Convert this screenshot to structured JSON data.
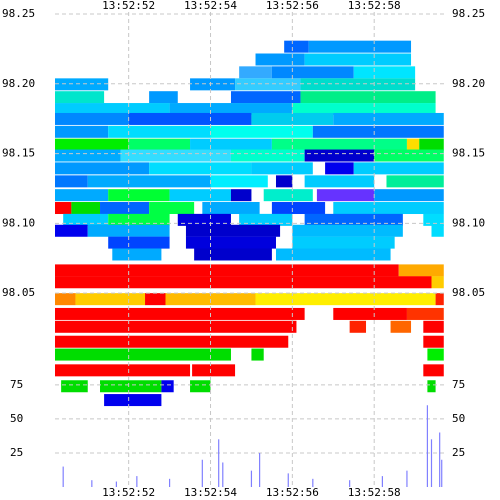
{
  "chart_data": [
    {
      "type": "heatmap",
      "xlim": [
        50.2,
        59.73
      ],
      "xticks": [
        {
          "value": 52,
          "label": "13:52:52"
        },
        {
          "value": 54,
          "label": "13:52:54"
        },
        {
          "value": 56,
          "label": "13:52:56"
        },
        {
          "value": 58,
          "label": "13:52:58"
        }
      ],
      "ylim": [
        97.967,
        98.25
      ],
      "yticks": [
        98.05,
        {
          "value": 98.1,
          "label": "98.10"
        },
        98.15,
        {
          "value": 98.2,
          "label": "98.20"
        },
        98.25
      ],
      "grid": true,
      "rows": [
        {
          "price": 98.2266,
          "cells": [
            [
              55.8,
              56.4,
              "#0066ff"
            ],
            [
              56.4,
              58.9,
              "#0099ff"
            ]
          ]
        },
        {
          "price": 98.2174,
          "cells": [
            [
              55.1,
              56.3,
              "#0099ff"
            ],
            [
              56.3,
              58.9,
              "#00ccff"
            ]
          ]
        },
        {
          "price": 98.2082,
          "cells": [
            [
              54.7,
              55.5,
              "#33aaff"
            ],
            [
              55.5,
              57.5,
              "#0088ff"
            ],
            [
              57.5,
              59.0,
              "#00e5ff"
            ]
          ]
        },
        {
          "price": 98.1996,
          "cells": [
            [
              50.2,
              51.5,
              "#00aaff"
            ],
            [
              53.5,
              54.6,
              "#0099ff"
            ],
            [
              54.6,
              56.2,
              "#33ccff"
            ],
            [
              56.2,
              59.0,
              "#00ddcc"
            ]
          ]
        },
        {
          "price": 98.1904,
          "cells": [
            [
              50.2,
              51.4,
              "#00e5cc"
            ],
            [
              52.5,
              53.2,
              "#0099ff"
            ],
            [
              54.5,
              56.2,
              "#0066ff"
            ],
            [
              56.2,
              59.5,
              "#00ee88"
            ]
          ]
        },
        {
          "price": 98.1819,
          "cells": [
            [
              50.2,
              53.0,
              "#00ccff"
            ],
            [
              53.0,
              56.0,
              "#00aaff"
            ],
            [
              56.0,
              59.5,
              "#00ffcc"
            ]
          ]
        },
        {
          "price": 98.1748,
          "cells": [
            [
              50.2,
              52.0,
              "#0088ff"
            ],
            [
              52.0,
              55.0,
              "#0055ff"
            ],
            [
              55.0,
              57.0,
              "#00ccee"
            ],
            [
              57.0,
              59.7,
              "#00aaff"
            ]
          ]
        },
        {
          "price": 98.1656,
          "cells": [
            [
              50.2,
              51.5,
              "#0099ff"
            ],
            [
              51.5,
              54.0,
              "#00ddff"
            ],
            [
              54.0,
              56.5,
              "#00ffee"
            ],
            [
              56.5,
              59.7,
              "#0077ff"
            ]
          ]
        },
        {
          "price": 98.1564,
          "cells": [
            [
              50.2,
              52.0,
              "#00ee00"
            ],
            [
              52.0,
              53.5,
              "#00ff66"
            ],
            [
              53.5,
              55.5,
              "#00ccff"
            ],
            [
              55.5,
              58.8,
              "#00ff88"
            ],
            [
              58.8,
              59.1,
              "#ffdd00"
            ],
            [
              59.1,
              59.7,
              "#00dd00"
            ]
          ]
        },
        {
          "price": 98.1486,
          "cells": [
            [
              50.2,
              51.8,
              "#00aaff"
            ],
            [
              51.8,
              54.5,
              "#33ddff"
            ],
            [
              54.5,
              56.3,
              "#00ffcc"
            ],
            [
              56.3,
              58.0,
              "#0000cc"
            ],
            [
              58.0,
              59.7,
              "#00ff66"
            ]
          ]
        },
        {
          "price": 98.1394,
          "cells": [
            [
              50.2,
              52.5,
              "#0099ff"
            ],
            [
              52.5,
              55.0,
              "#00ddff"
            ],
            [
              55.0,
              56.5,
              "#00ccff"
            ],
            [
              56.8,
              57.5,
              "#0000ee"
            ],
            [
              57.5,
              59.7,
              "#00ccff"
            ]
          ]
        },
        {
          "price": 98.1301,
          "cells": [
            [
              50.2,
              51.0,
              "#0077ff"
            ],
            [
              51.0,
              54.0,
              "#00aaff"
            ],
            [
              54.0,
              55.4,
              "#00eeff"
            ],
            [
              55.6,
              56.0,
              "#0000cc"
            ],
            [
              56.3,
              58.0,
              "#00ccff"
            ],
            [
              58.3,
              59.7,
              "#00ee99"
            ]
          ]
        },
        {
          "price": 98.1202,
          "cells": [
            [
              50.2,
              51.5,
              "#00aaff"
            ],
            [
              51.5,
              53.0,
              "#00ff33"
            ],
            [
              53.0,
              54.5,
              "#00ccff"
            ],
            [
              54.5,
              55.0,
              "#0000cc"
            ],
            [
              55.3,
              56.5,
              "#00eecc"
            ],
            [
              56.6,
              58.0,
              "#6633ff"
            ],
            [
              58.0,
              59.7,
              "#0099ff"
            ]
          ]
        },
        {
          "price": 98.111,
          "cells": [
            [
              50.2,
              50.6,
              "#ff0000"
            ],
            [
              50.6,
              51.3,
              "#00dd00"
            ],
            [
              51.3,
              52.5,
              "#0066ff"
            ],
            [
              52.5,
              53.6,
              "#00ff44"
            ],
            [
              53.8,
              55.2,
              "#00aaff"
            ],
            [
              55.5,
              56.8,
              "#0044ff"
            ],
            [
              57.0,
              59.7,
              "#00ccff"
            ]
          ]
        },
        {
          "price": 98.1025,
          "cells": [
            [
              50.4,
              51.5,
              "#00ccff"
            ],
            [
              51.5,
              53.0,
              "#00ff44"
            ],
            [
              53.2,
              54.5,
              "#0000dd"
            ],
            [
              54.7,
              56.0,
              "#00ccff"
            ],
            [
              56.3,
              58.7,
              "#0066ff"
            ],
            [
              59.2,
              59.7,
              "#00ddff"
            ]
          ]
        },
        {
          "price": 98.0947,
          "cells": [
            [
              50.2,
              51.0,
              "#0000ee"
            ],
            [
              51.0,
              53.0,
              "#00aaff"
            ],
            [
              53.4,
              55.7,
              "#0000cc"
            ],
            [
              56.0,
              58.7,
              "#00bbff"
            ],
            [
              59.4,
              59.7,
              "#00ddff"
            ]
          ]
        },
        {
          "price": 98.0862,
          "cells": [
            [
              51.5,
              53.0,
              "#0044ff"
            ],
            [
              53.4,
              55.6,
              "#0000dd"
            ],
            [
              56.0,
              58.5,
              "#00ccff"
            ]
          ]
        },
        {
          "price": 98.0777,
          "cells": [
            [
              51.6,
              52.8,
              "#00aaff"
            ],
            [
              53.6,
              55.5,
              "#0000cc"
            ],
            [
              55.6,
              58.4,
              "#00bbff"
            ]
          ]
        },
        {
          "price": 98.0663,
          "cells": [
            [
              50.2,
              58.6,
              "#ff0000"
            ],
            [
              58.6,
              59.7,
              "#ffaa00"
            ]
          ]
        },
        {
          "price": 98.0578,
          "cells": [
            [
              50.2,
              59.4,
              "#ff0000"
            ],
            [
              59.4,
              59.7,
              "#ffcc00"
            ]
          ]
        },
        {
          "price": 98.0457,
          "cells": [
            [
              50.2,
              50.7,
              "#ff8800"
            ],
            [
              50.7,
              52.4,
              "#ffcc00"
            ],
            [
              52.4,
              52.9,
              "#ff0000"
            ],
            [
              52.9,
              55.1,
              "#ffbb00"
            ],
            [
              55.1,
              59.5,
              "#ffee00"
            ],
            [
              59.5,
              59.7,
              "#ff2200"
            ]
          ]
        },
        {
          "price": 98.0351,
          "cells": [
            [
              50.2,
              56.3,
              "#ff0000"
            ],
            [
              57.0,
              58.8,
              "#ff0000"
            ],
            [
              58.8,
              59.7,
              "#ff3300"
            ]
          ]
        },
        {
          "price": 98.0259,
          "cells": [
            [
              50.2,
              56.1,
              "#ff0000"
            ],
            [
              57.4,
              57.8,
              "#ff2200"
            ],
            [
              58.4,
              58.9,
              "#ff6600"
            ],
            [
              59.2,
              59.7,
              "#ff0000"
            ]
          ]
        },
        {
          "price": 98.0152,
          "cells": [
            [
              50.2,
              55.9,
              "#ff0000"
            ],
            [
              59.2,
              59.7,
              "#ff0000"
            ]
          ]
        },
        {
          "price": 98.006,
          "cells": [
            [
              50.2,
              54.5,
              "#00dd00"
            ],
            [
              55.0,
              55.3,
              "#00dd00"
            ],
            [
              59.3,
              59.7,
              "#00ee00"
            ]
          ]
        },
        {
          "price": 97.9947,
          "cells": [
            [
              50.2,
              53.5,
              "#ff0000"
            ],
            [
              53.55,
              54.6,
              "#ff0000"
            ],
            [
              59.2,
              59.7,
              "#ff0000"
            ]
          ]
        },
        {
          "price": 97.9833,
          "cells": [
            [
              50.35,
              51.0,
              "#00dd00"
            ],
            [
              51.3,
              52.8,
              "#00dd00"
            ],
            [
              52.8,
              53.1,
              "#0000ee"
            ],
            [
              53.5,
              54.0,
              "#00dd00"
            ],
            [
              59.3,
              59.5,
              "#00dd00"
            ]
          ]
        },
        {
          "price": 97.9734,
          "cells": [
            [
              51.4,
              52.8,
              "#0000ee"
            ]
          ]
        }
      ]
    },
    {
      "type": "bar",
      "x": [
        50.4,
        51.1,
        51.7,
        52.2,
        53.0,
        53.8,
        54.2,
        54.3,
        55.0,
        55.2,
        55.9,
        56.5,
        57.4,
        58.2,
        58.8,
        59.3,
        59.4,
        59.6,
        59.65
      ],
      "values": [
        15,
        5,
        4,
        8,
        6,
        20,
        35,
        18,
        12,
        25,
        10,
        6,
        5,
        8,
        12,
        60,
        35,
        40,
        20
      ],
      "color": "#8080ff",
      "ylim": [
        0,
        80
      ],
      "yticks": [
        25,
        50,
        75
      ],
      "grid": true
    }
  ]
}
